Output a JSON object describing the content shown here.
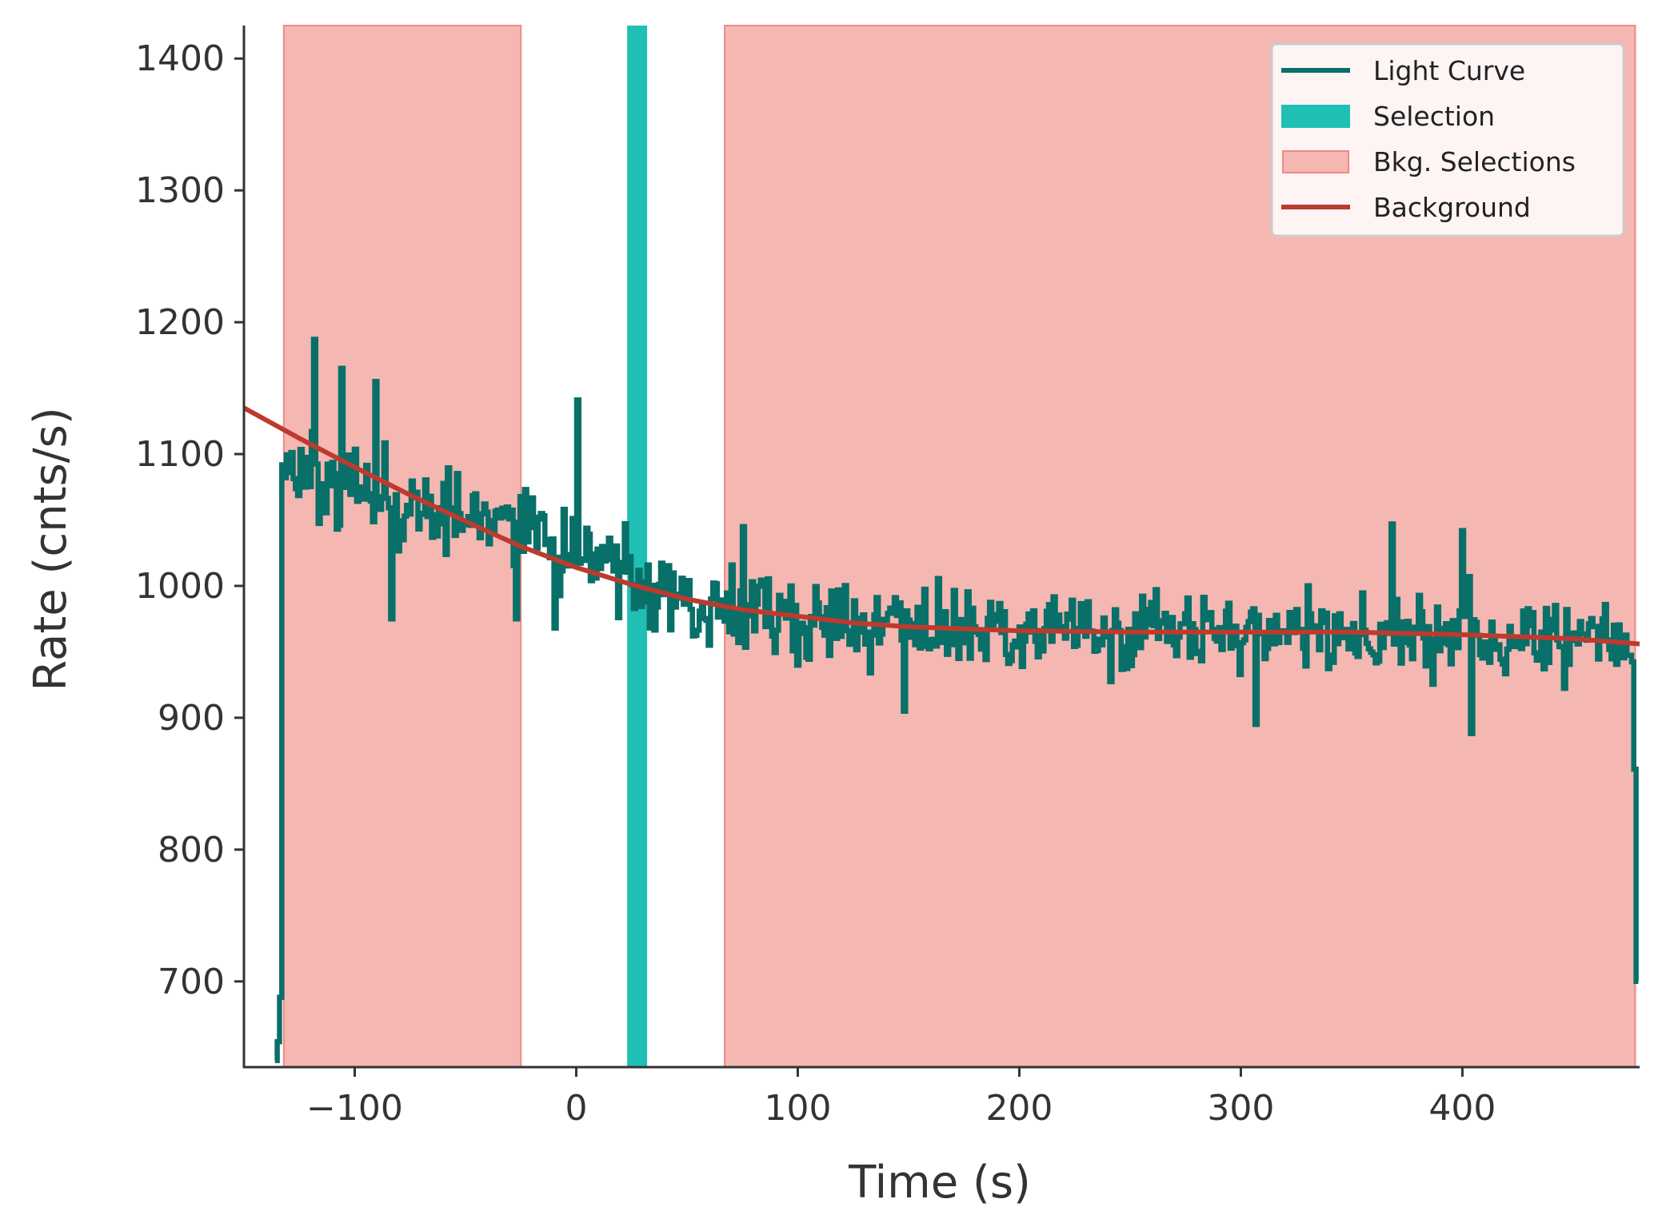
{
  "chart_data": {
    "type": "line",
    "title": "",
    "xlabel": "Time (s)",
    "ylabel": "Rate (cnts/s)",
    "xlim": [
      -150,
      480
    ],
    "ylim": [
      635,
      1425
    ],
    "xticks": [
      -100,
      0,
      100,
      200,
      300,
      400
    ],
    "xtick_labels": [
      "−100",
      "0",
      "100",
      "200",
      "300",
      "400"
    ],
    "yticks": [
      700,
      800,
      900,
      1000,
      1100,
      1200,
      1300,
      1400
    ],
    "ytick_labels": [
      "700",
      "800",
      "900",
      "1000",
      "1100",
      "1200",
      "1300",
      "1400"
    ],
    "grid": false,
    "legend": {
      "position": "top-right",
      "entries": [
        {
          "label": "Light Curve",
          "kind": "line",
          "color": "#087068"
        },
        {
          "label": "Selection",
          "kind": "patch",
          "color": "#1fbfb5"
        },
        {
          "label": "Bkg. Selections",
          "kind": "patch",
          "color": "#f5b7b2",
          "edge": "#ee8a84"
        },
        {
          "label": "Background",
          "kind": "line",
          "color": "#bd3a2e"
        }
      ]
    },
    "light_curve": {
      "name": "Light Curve",
      "color": "#087068",
      "bin_width": 1.024,
      "t_start": -136,
      "t_end": 479,
      "level_anchors": [
        [
          -136,
          640
        ],
        [
          -134,
          668
        ],
        [
          -133,
          1085
        ],
        [
          -120,
          1085
        ],
        [
          -100,
          1075
        ],
        [
          -80,
          1060
        ],
        [
          -60,
          1050
        ],
        [
          -40,
          1045
        ],
        [
          -20,
          1040
        ],
        [
          0,
          1025
        ],
        [
          20,
          1010
        ],
        [
          40,
          995
        ],
        [
          60,
          985
        ],
        [
          80,
          980
        ],
        [
          100,
          975
        ],
        [
          140,
          970
        ],
        [
          200,
          965
        ],
        [
          300,
          965
        ],
        [
          400,
          962
        ],
        [
          477,
          958
        ],
        [
          478,
          700
        ]
      ],
      "noise_amplitude": 22,
      "peaks": [
        {
          "t": -119,
          "rate": 1187
        },
        {
          "t": -106,
          "rate": 1165
        },
        {
          "t": -91,
          "rate": 1155
        },
        {
          "t": 0,
          "rate": 1141
        },
        {
          "t": 75,
          "rate": 1045
        },
        {
          "t": 368,
          "rate": 1047
        },
        {
          "t": 400,
          "rate": 1042
        }
      ],
      "dips": [
        {
          "t": -84,
          "rate": 975
        },
        {
          "t": -27,
          "rate": 975
        },
        {
          "t": -10,
          "rate": 968
        },
        {
          "t": 60,
          "rate": 955
        },
        {
          "t": 148,
          "rate": 905
        },
        {
          "t": 306,
          "rate": 895
        },
        {
          "t": 404,
          "rate": 888
        }
      ]
    },
    "selection": {
      "name": "Selection",
      "range": [
        23,
        32
      ],
      "color": "#1fbfb5"
    },
    "bkg_selections": {
      "name": "Bkg. Selections",
      "ranges": [
        [
          -132,
          -25
        ],
        [
          67,
          478
        ]
      ],
      "color": "#f5b7b2",
      "edge_color": "#ee8a84"
    },
    "background": {
      "name": "Background",
      "color": "#bd3a2e",
      "x": [
        -150,
        -125,
        -100,
        -75,
        -50,
        -25,
        0,
        25,
        50,
        75,
        100,
        125,
        150,
        200,
        250,
        300,
        350,
        400,
        450,
        480
      ],
      "y": [
        1135,
        1112,
        1090,
        1069,
        1049,
        1030,
        1014,
        1001,
        990,
        982,
        977,
        972,
        969,
        966,
        965,
        965,
        965,
        963,
        960,
        956
      ]
    }
  }
}
